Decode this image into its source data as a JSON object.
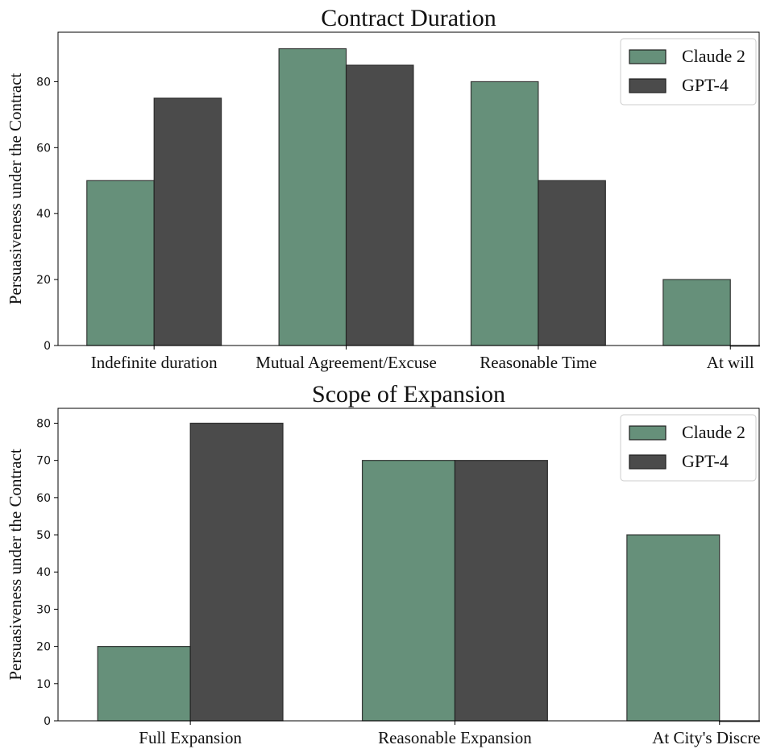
{
  "chart_data": [
    {
      "type": "bar",
      "title": "Contract Duration",
      "xlabel": "",
      "ylabel": "Persuasiveness under the Contract",
      "categories": [
        "Indefinite duration",
        "Mutual Agreement/Excuse",
        "Reasonable Time",
        "At will"
      ],
      "series": [
        {
          "name": "Claude 2",
          "values": [
            50,
            90,
            80,
            20
          ],
          "color": "#66907a"
        },
        {
          "name": "GPT-4",
          "values": [
            75,
            85,
            50,
            0
          ],
          "color": "#4b4b4b"
        }
      ],
      "ylim": [
        0,
        95
      ],
      "yticks": [
        0,
        20,
        40,
        60,
        80
      ],
      "grid": false,
      "legend_position": "top-right"
    },
    {
      "type": "bar",
      "title": "Scope of Expansion",
      "xlabel": "",
      "ylabel": "Persuasiveness under the Contract",
      "categories": [
        "Full Expansion",
        "Reasonable Expansion",
        "At City's Discretion"
      ],
      "series": [
        {
          "name": "Claude 2",
          "values": [
            20,
            70,
            50
          ],
          "color": "#66907a"
        },
        {
          "name": "GPT-4",
          "values": [
            80,
            70,
            0
          ],
          "color": "#4b4b4b"
        }
      ],
      "ylim": [
        0,
        84
      ],
      "yticks": [
        0,
        10,
        20,
        30,
        40,
        50,
        60,
        70,
        80
      ],
      "grid": false,
      "legend_position": "top-right"
    }
  ]
}
